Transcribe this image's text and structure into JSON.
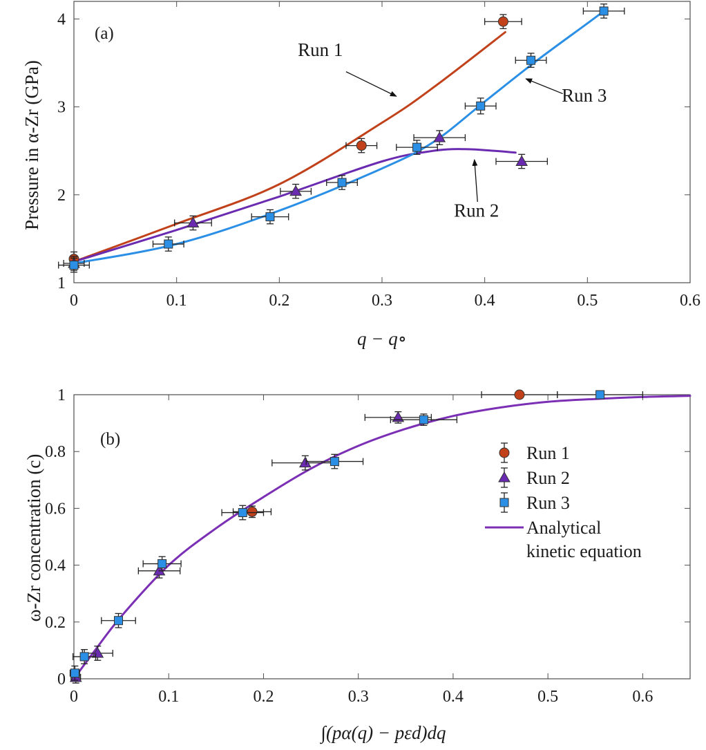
{
  "colors": {
    "run1": "#c0411a",
    "run2": "#6a2bb0",
    "run3": "#2b8fe6",
    "curve": "#7b2fb5",
    "axis": "#4d4d4d",
    "err": "#222222"
  },
  "chart_data": [
    {
      "type": "scatter",
      "panel_label": "(a)",
      "ylabel": "Pressure in α-Zr (GPa)",
      "xlabel": "q − q∘",
      "xlim": [
        0,
        0.6
      ],
      "ylim": [
        1,
        4.2
      ],
      "xticks": [
        0,
        0.1,
        0.2,
        0.3,
        0.4,
        0.5,
        0.6
      ],
      "xtick_labels": [
        "0",
        "0.1",
        "0.2",
        "0.3",
        "0.4",
        "0.5",
        "0.6"
      ],
      "yticks": [
        1,
        2,
        3,
        4
      ],
      "ytick_labels": [
        "1",
        "2",
        "3",
        "4"
      ],
      "grid": false,
      "series": [
        {
          "name": "Run 1",
          "marker": "circle",
          "color": "#c0411a",
          "points": [
            {
              "x": 0,
              "y": 1.27,
              "xerr": 0,
              "yerr": 0.08
            },
            {
              "x": 0.28,
              "y": 2.56,
              "xerr": 0.015,
              "yerr": 0.08
            },
            {
              "x": 0.418,
              "y": 3.97,
              "xerr": 0.018,
              "yerr": 0.08
            }
          ],
          "curve": [
            [
              0,
              1.24
            ],
            [
              0.1,
              1.67
            ],
            [
              0.2,
              2.12
            ],
            [
              0.3,
              2.82
            ],
            [
              0.35,
              3.22
            ],
            [
              0.42,
              3.85
            ]
          ]
        },
        {
          "name": "Run 2",
          "marker": "triangle",
          "color": "#6a2bb0",
          "points": [
            {
              "x": 0,
              "y": 1.22,
              "xerr": 0.01,
              "yerr": 0.08
            },
            {
              "x": 0.116,
              "y": 1.68,
              "xerr": 0.018,
              "yerr": 0.08
            },
            {
              "x": 0.216,
              "y": 2.04,
              "xerr": 0.015,
              "yerr": 0.08
            },
            {
              "x": 0.356,
              "y": 2.65,
              "xerr": 0.025,
              "yerr": 0.08
            },
            {
              "x": 0.436,
              "y": 2.38,
              "xerr": 0.025,
              "yerr": 0.08
            }
          ],
          "curve": [
            [
              0,
              1.24
            ],
            [
              0.1,
              1.6
            ],
            [
              0.2,
              1.98
            ],
            [
              0.3,
              2.38
            ],
            [
              0.35,
              2.5
            ],
            [
              0.38,
              2.52
            ],
            [
              0.41,
              2.5
            ],
            [
              0.43,
              2.48
            ]
          ]
        },
        {
          "name": "Run 3",
          "marker": "square",
          "color": "#2b8fe6",
          "points": [
            {
              "x": 0,
              "y": 1.2,
              "xerr": 0.015,
              "yerr": 0.08
            },
            {
              "x": 0.092,
              "y": 1.44,
              "xerr": 0.015,
              "yerr": 0.08
            },
            {
              "x": 0.191,
              "y": 1.75,
              "xerr": 0.018,
              "yerr": 0.08
            },
            {
              "x": 0.261,
              "y": 2.14,
              "xerr": 0.015,
              "yerr": 0.08
            },
            {
              "x": 0.334,
              "y": 2.54,
              "xerr": 0.02,
              "yerr": 0.08
            },
            {
              "x": 0.396,
              "y": 3.01,
              "xerr": 0.015,
              "yerr": 0.09
            },
            {
              "x": 0.445,
              "y": 3.53,
              "xerr": 0.015,
              "yerr": 0.08
            },
            {
              "x": 0.516,
              "y": 4.09,
              "xerr": 0.02,
              "yerr": 0.08
            }
          ],
          "curve": [
            [
              0,
              1.22
            ],
            [
              0.1,
              1.44
            ],
            [
              0.2,
              1.82
            ],
            [
              0.3,
              2.3
            ],
            [
              0.35,
              2.6
            ],
            [
              0.4,
              3.06
            ],
            [
              0.45,
              3.52
            ],
            [
              0.5,
              3.95
            ],
            [
              0.515,
              4.08
            ]
          ]
        }
      ],
      "annotations": [
        {
          "text": "Run 1",
          "x": 0.218,
          "y": 3.58,
          "arrow_from": [
            0.265,
            3.4
          ],
          "arrow_to": [
            0.314,
            3.12
          ]
        },
        {
          "text": "Run 2",
          "x": 0.37,
          "y": 1.75,
          "arrow_from": [
            0.393,
            1.92
          ],
          "arrow_to": [
            0.39,
            2.4
          ]
        },
        {
          "text": "Run 3",
          "x": 0.475,
          "y": 3.06,
          "arrow_from": [
            0.476,
            3.15
          ],
          "arrow_to": [
            0.44,
            3.32
          ]
        }
      ]
    },
    {
      "type": "scatter",
      "panel_label": "(b)",
      "ylabel": "ω-Zr concentration (c)",
      "xlabel": "∫(pα(q) − pεd)dq",
      "xlim": [
        0,
        0.65
      ],
      "ylim": [
        0,
        1
      ],
      "xticks": [
        0,
        0.1,
        0.2,
        0.3,
        0.4,
        0.5,
        0.6
      ],
      "xtick_labels": [
        "0",
        "0.1",
        "0.2",
        "0.3",
        "0.4",
        "0.5",
        "0.6"
      ],
      "yticks": [
        0,
        0.2,
        0.4,
        0.6,
        0.8,
        1
      ],
      "ytick_labels": [
        "0",
        "0.2",
        "0.4",
        "0.6",
        "0.8",
        "1"
      ],
      "grid": false,
      "legend": {
        "position": "right",
        "entries": [
          "Run 1",
          "Run 2",
          "Run 3",
          "Analytical\nkinetic equation"
        ]
      },
      "series": [
        {
          "name": "Run 1",
          "marker": "circle",
          "color": "#c0411a",
          "points": [
            {
              "x": 0.188,
              "y": 0.588,
              "xerr": 0.02,
              "yerr": 0.02
            },
            {
              "x": 0.47,
              "y": 1.0,
              "xerr": 0.04,
              "yerr": 0.0
            }
          ]
        },
        {
          "name": "Run 2",
          "marker": "triangle",
          "color": "#6a2bb0",
          "points": [
            {
              "x": 0.002,
              "y": 0.005,
              "xerr": 0.005,
              "yerr": 0.02
            },
            {
              "x": 0.025,
              "y": 0.09,
              "xerr": 0.016,
              "yerr": 0.025
            },
            {
              "x": 0.09,
              "y": 0.38,
              "xerr": 0.022,
              "yerr": 0.025
            },
            {
              "x": 0.244,
              "y": 0.76,
              "xerr": 0.035,
              "yerr": 0.025
            },
            {
              "x": 0.342,
              "y": 0.92,
              "xerr": 0.035,
              "yerr": 0.02
            }
          ]
        },
        {
          "name": "Run 3",
          "marker": "square",
          "color": "#2b8fe6",
          "points": [
            {
              "x": 0.001,
              "y": 0.02,
              "xerr": 0.005,
              "yerr": 0.025
            },
            {
              "x": 0.011,
              "y": 0.078,
              "xerr": 0.012,
              "yerr": 0.025
            },
            {
              "x": 0.047,
              "y": 0.205,
              "xerr": 0.018,
              "yerr": 0.025
            },
            {
              "x": 0.093,
              "y": 0.405,
              "xerr": 0.02,
              "yerr": 0.025
            },
            {
              "x": 0.178,
              "y": 0.585,
              "xerr": 0.022,
              "yerr": 0.025
            },
            {
              "x": 0.275,
              "y": 0.765,
              "xerr": 0.03,
              "yerr": 0.025
            },
            {
              "x": 0.369,
              "y": 0.912,
              "xerr": 0.035,
              "yerr": 0.02
            },
            {
              "x": 0.555,
              "y": 1.0,
              "xerr": 0.045,
              "yerr": 0.0
            }
          ]
        },
        {
          "name": "Analytical\nkinetic equation",
          "type": "line",
          "color": "#7b2fb5",
          "curve": [
            [
              0,
              0
            ],
            [
              0.02,
              0.09
            ],
            [
              0.05,
              0.22
            ],
            [
              0.1,
              0.4
            ],
            [
              0.15,
              0.53
            ],
            [
              0.2,
              0.64
            ],
            [
              0.25,
              0.74
            ],
            [
              0.3,
              0.82
            ],
            [
              0.35,
              0.88
            ],
            [
              0.4,
              0.925
            ],
            [
              0.45,
              0.955
            ],
            [
              0.5,
              0.975
            ],
            [
              0.55,
              0.985
            ],
            [
              0.6,
              0.992
            ],
            [
              0.65,
              0.996
            ]
          ]
        }
      ]
    }
  ]
}
